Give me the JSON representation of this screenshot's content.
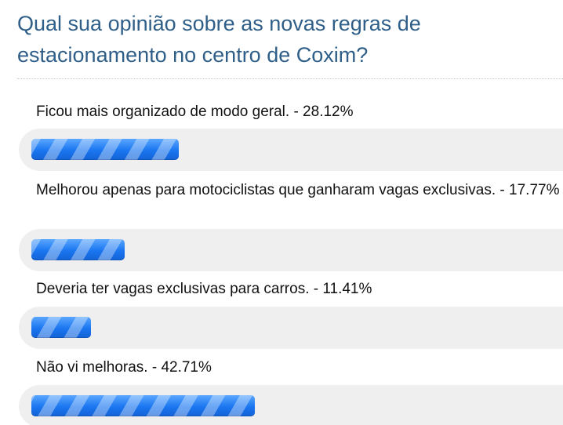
{
  "poll": {
    "question": "Qual sua opinião sobre as novas regras de estacionamento no centro de Coxim?",
    "bar_color": "#1a74ee",
    "track_color": "#efefef",
    "options": [
      {
        "label": "Ficou mais organizado de modo geral. - 28.12%",
        "percent": 28.12
      },
      {
        "label": "Melhorou apenas para motociclistas que ganharam vagas exclusivas. - 17.77%",
        "percent": 17.77
      },
      {
        "label": "Deveria ter vagas exclusivas para carros. - 11.41%",
        "percent": 11.41
      },
      {
        "label": "Não vi melhoras. - 42.71%",
        "percent": 42.71
      }
    ]
  }
}
